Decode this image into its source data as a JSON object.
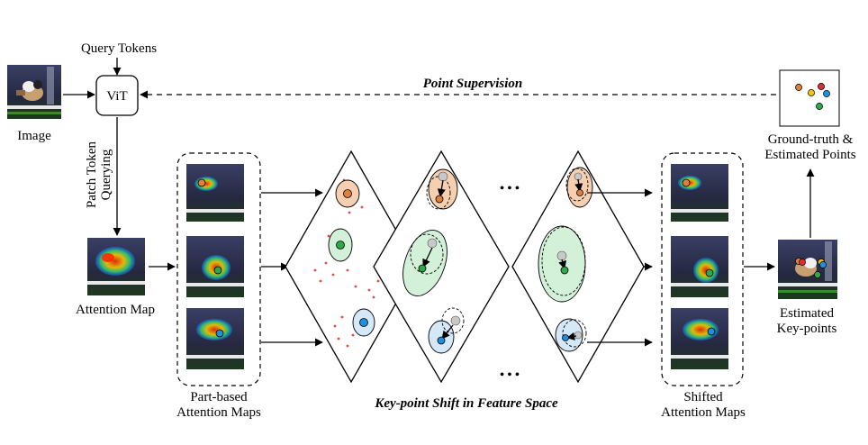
{
  "labels": {
    "query_tokens": "Query Tokens",
    "vit": "ViT",
    "image": "Image",
    "point_supervision": "Point Supervision",
    "patch_token_querying_line1": "Patch Token",
    "patch_token_querying_line2": "Querying",
    "attention_map": "Attention Map",
    "part_based_line1": "Part-based",
    "part_based_line2": "Attention Maps",
    "keypoint_shift": "Key-point Shift in Feature Space",
    "shifted_line1": "Shifted",
    "shifted_line2": "Attention Maps",
    "estimated_line1": "Estimated",
    "estimated_line2": "Key-points",
    "gt_line1": "Ground-truth &",
    "gt_line2": "Estimated Points",
    "ellipsis_top": "• • •",
    "ellipsis_bottom": "• • •"
  },
  "colors": {
    "orange": "#e0803a",
    "green": "#2fa84a",
    "blue": "#1f8fe0",
    "red": "#d93030",
    "yellow": "#f2c21a",
    "scatter": "#e04848",
    "ellipse_orange_fill": "#f6cfb0",
    "ellipse_green_fill": "#d3f0d8",
    "ellipse_blue_fill": "#d4e8f8",
    "photo_bg": "#2a2e4a"
  }
}
